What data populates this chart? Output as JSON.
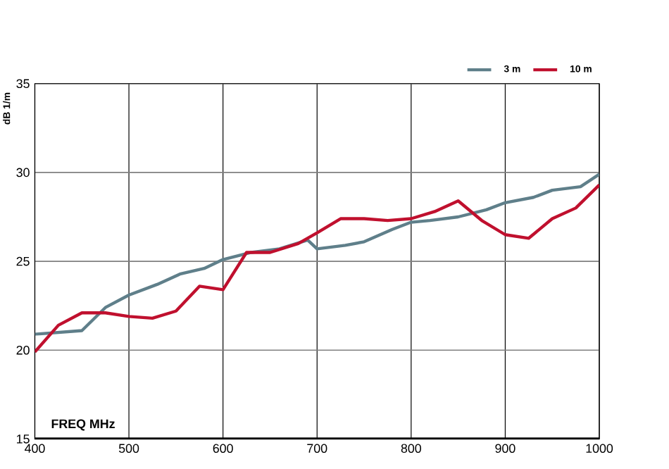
{
  "chart_data": {
    "type": "line",
    "xlabel": "FREQ  MHz",
    "ylabel": "dB 1/m",
    "xlim": [
      400,
      1000
    ],
    "ylim": [
      15,
      35
    ],
    "xticks": [
      400,
      500,
      600,
      700,
      800,
      900,
      1000
    ],
    "yticks": [
      15,
      20,
      25,
      30,
      35
    ],
    "grid": true,
    "legend": "top right",
    "marker": "none",
    "line_style": "solid",
    "series": [
      {
        "name": "3 m",
        "color": "#5f7f8a",
        "x": [
          400,
          450,
          475,
          500,
          530,
          555,
          580,
          600,
          630,
          660,
          690,
          700,
          730,
          750,
          780,
          800,
          820,
          850,
          880,
          900,
          930,
          950,
          980,
          1000
        ],
        "values": [
          20.9,
          21.1,
          22.4,
          23.1,
          23.7,
          24.3,
          24.6,
          25.1,
          25.5,
          25.7,
          26.2,
          25.7,
          25.9,
          26.1,
          26.8,
          27.2,
          27.3,
          27.5,
          27.9,
          28.3,
          28.6,
          29.0,
          29.2,
          29.9
        ]
      },
      {
        "name": "10 m",
        "color": "#c0102e",
        "x": [
          400,
          425,
          450,
          475,
          500,
          525,
          550,
          575,
          600,
          625,
          650,
          680,
          700,
          725,
          750,
          775,
          800,
          825,
          850,
          875,
          900,
          925,
          950,
          975,
          1000
        ],
        "values": [
          19.9,
          21.4,
          22.1,
          22.1,
          21.9,
          21.8,
          22.2,
          23.6,
          23.4,
          25.5,
          25.5,
          26.0,
          26.6,
          27.4,
          27.4,
          27.3,
          27.4,
          27.8,
          28.4,
          27.3,
          26.5,
          26.3,
          27.4,
          28.0,
          29.3
        ]
      }
    ]
  }
}
